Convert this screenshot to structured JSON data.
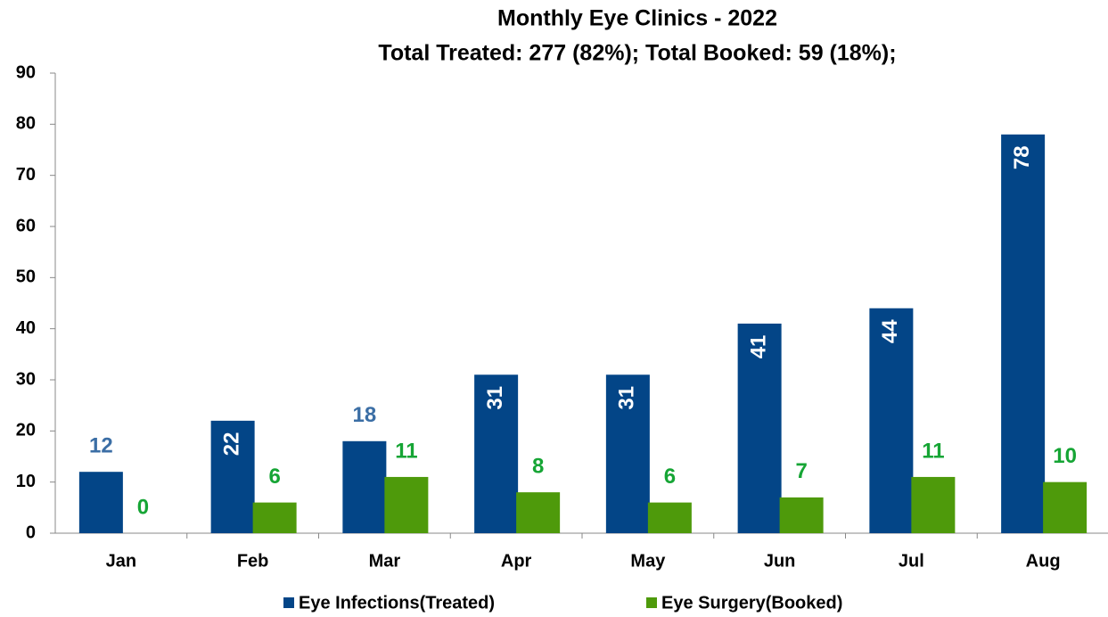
{
  "chart_data": {
    "type": "bar",
    "title": "Monthly Eye Clinics - 2022",
    "subtitle": "Total Treated: 277 (82%); Total Booked: 59 (18%);",
    "categories": [
      "Jan",
      "Feb",
      "Mar",
      "Apr",
      "May",
      "Jun",
      "Jul",
      "Aug"
    ],
    "series": [
      {
        "name": "Eye Infections(Treated)",
        "color": "#034587",
        "label_color": "#3b6ea5",
        "values": [
          12,
          22,
          18,
          31,
          31,
          41,
          44,
          78
        ]
      },
      {
        "name": "Eye Surgery(Booked)",
        "color": "#4e9a0b",
        "label_color": "#16a535",
        "values": [
          0,
          6,
          11,
          8,
          6,
          7,
          11,
          10
        ]
      }
    ],
    "ylim": [
      0,
      90
    ],
    "yticks": [
      0,
      10,
      20,
      30,
      40,
      50,
      60,
      70,
      80,
      90
    ],
    "legend": "bottom"
  }
}
